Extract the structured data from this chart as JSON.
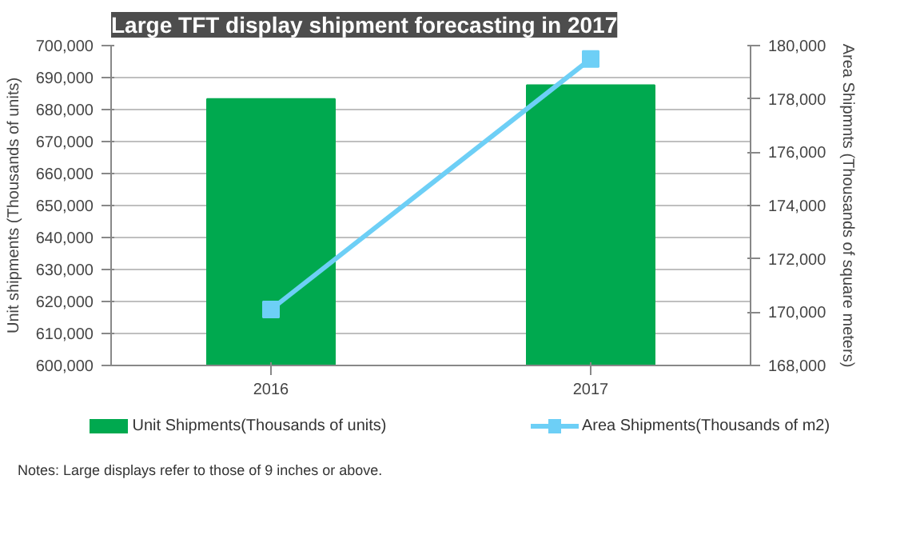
{
  "chart_data": {
    "type": "bar",
    "title": "Large TFT display shipment forecasting in 2017",
    "categories": [
      "2016",
      "2017"
    ],
    "ylabel": "Unit shipments (Thousands of units)",
    "y2label": "Area Shipmnts (Thousands of square meters)",
    "ylim": [
      600000,
      700000
    ],
    "yticks": [
      {
        "value": 600000,
        "label": "600,000"
      },
      {
        "value": 610000,
        "label": "610,000"
      },
      {
        "value": 620000,
        "label": "620,000"
      },
      {
        "value": 630000,
        "label": "630,000"
      },
      {
        "value": 640000,
        "label": "640,000"
      },
      {
        "value": 650000,
        "label": "650,000"
      },
      {
        "value": 660000,
        "label": "660,000"
      },
      {
        "value": 670000,
        "label": "670,000"
      },
      {
        "value": 680000,
        "label": "680,000"
      },
      {
        "value": 690000,
        "label": "690,000"
      },
      {
        "value": 700000,
        "label": "700,000"
      }
    ],
    "y2lim": [
      168000,
      180000
    ],
    "y2ticks": [
      {
        "value": 168000,
        "label": "168,000"
      },
      {
        "value": 170000,
        "label": "170,000"
      },
      {
        "value": 172000,
        "label": "172,000"
      },
      {
        "value": 174000,
        "label": "174,000"
      },
      {
        "value": 176000,
        "label": "176,000"
      },
      {
        "value": 178000,
        "label": "178,000"
      },
      {
        "value": 180000,
        "label": "180,000"
      }
    ],
    "series": [
      {
        "name": "Unit Shipments(Thousands of units)",
        "color": "#00a94f",
        "values": [
          683300,
          687600
        ]
      },
      {
        "name": "Area Shipments(Thousands of m2)",
        "type": "line",
        "axis": "y2",
        "color": "#6dcff6",
        "marker": "square",
        "values": [
          170100,
          179500
        ]
      }
    ],
    "grid": "y",
    "legend": "bottom",
    "annotations": [
      "Notes: Large displays refer to those of 9 inches or above."
    ]
  }
}
